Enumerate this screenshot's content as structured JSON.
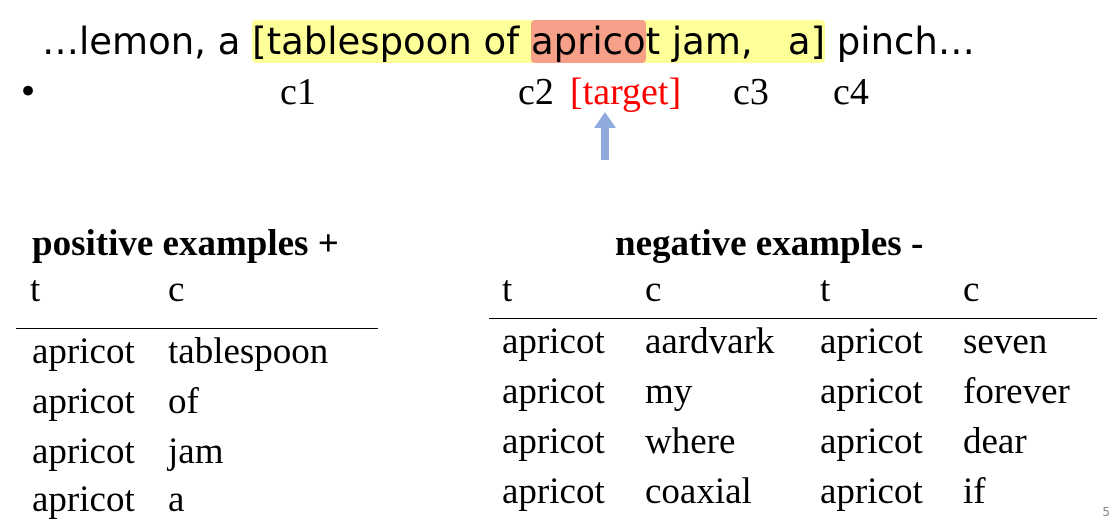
{
  "sentence": {
    "prefix": "…lemon, a ",
    "context_open": "[tablespoon of ",
    "target_word_part": "aprico",
    "target_tail": "t",
    "context_close": " jam,   a]",
    "suffix": " pinch…"
  },
  "bullet": "•",
  "context_labels": {
    "c1": "c1",
    "c2": "c2",
    "target": "[target]",
    "c3": "c3",
    "c4": "c4"
  },
  "colors": {
    "context_highlight": "#ffff99",
    "target_highlight": "#f6a08a",
    "target_text": "#ff0000",
    "arrow": "#8faadc"
  },
  "positive": {
    "title": "positive examples +",
    "headers": [
      "t",
      "c"
    ],
    "rows": [
      [
        "apricot",
        "tablespoon"
      ],
      [
        "apricot",
        "of"
      ],
      [
        "apricot",
        "jam"
      ],
      [
        "apricot",
        "a"
      ]
    ]
  },
  "negative": {
    "title": "negative examples -",
    "headers": [
      "t",
      "c",
      "t",
      "c"
    ],
    "rows": [
      [
        "apricot",
        "aardvark",
        "apricot",
        "seven"
      ],
      [
        "apricot",
        "my",
        "apricot",
        "forever"
      ],
      [
        "apricot",
        "where",
        "apricot",
        "dear"
      ],
      [
        "apricot",
        "coaxial",
        "apricot",
        "if"
      ]
    ]
  },
  "page_number": "5"
}
